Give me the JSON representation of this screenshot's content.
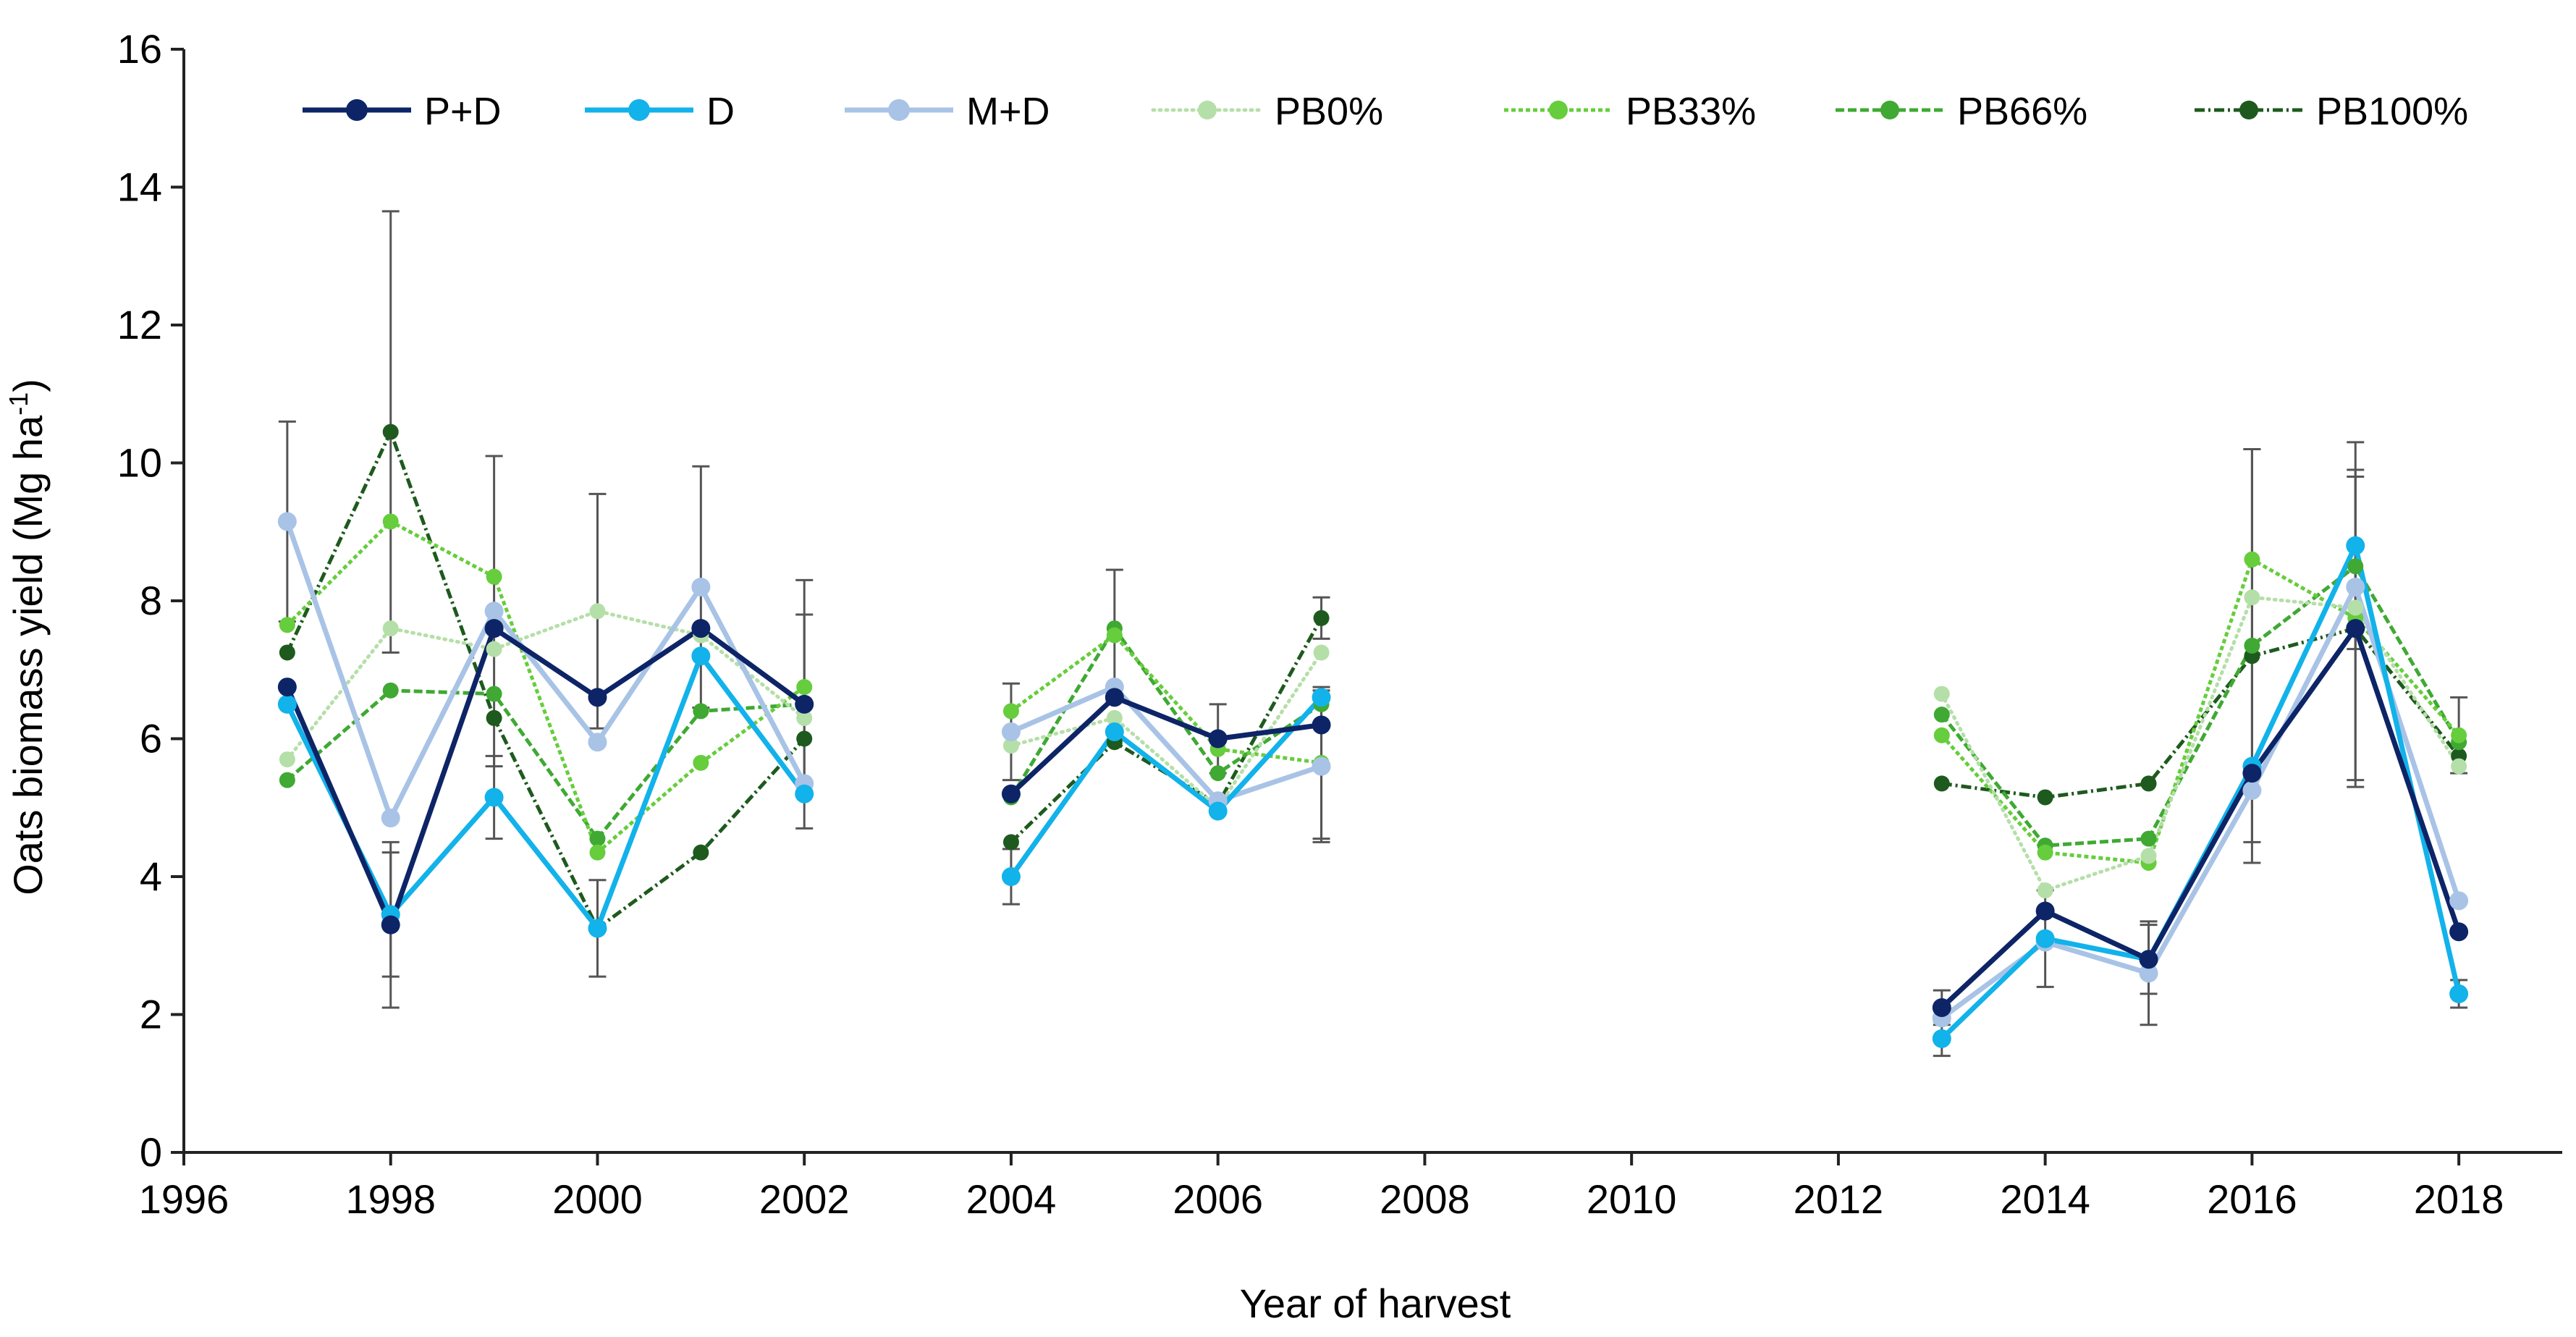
{
  "chart_data": {
    "type": "line",
    "title": "",
    "xlabel": "Year of harvest",
    "ylabel_main": "Oats  biomass yield (Mg ha",
    "ylabel_sup": "-1",
    "ylabel_close": ")",
    "xlim": [
      1996,
      2019
    ],
    "ylim": [
      0,
      16
    ],
    "xticks": [
      1996,
      1998,
      2000,
      2002,
      2004,
      2006,
      2008,
      2010,
      2012,
      2014,
      2016,
      2018
    ],
    "yticks": [
      0,
      2,
      4,
      6,
      8,
      10,
      12,
      14,
      16
    ],
    "legend_position": "top",
    "segments": [
      [
        1997,
        2002
      ],
      [
        2004,
        2007
      ],
      [
        2013,
        2018
      ]
    ],
    "series": [
      {
        "name": "P+D",
        "color": "#0d2467",
        "dash": "solid",
        "width": 7,
        "marker": 13,
        "x": [
          1997,
          1998,
          1999,
          2000,
          2001,
          2002,
          2004,
          2005,
          2006,
          2007,
          2013,
          2014,
          2015,
          2016,
          2017,
          2018
        ],
        "y": [
          6.75,
          3.3,
          7.6,
          6.6,
          7.6,
          6.5,
          5.2,
          6.6,
          6.0,
          6.2,
          2.1,
          3.5,
          2.8,
          5.5,
          7.6,
          3.2
        ],
        "err": [
          0,
          1.2,
          0,
          0,
          0,
          1.3,
          0,
          0,
          0.5,
          0,
          0.25,
          0,
          0,
          0,
          2.2,
          0
        ]
      },
      {
        "name": "D",
        "color": "#12b2ea",
        "dash": "solid",
        "width": 7,
        "marker": 13,
        "x": [
          1997,
          1998,
          1999,
          2000,
          2001,
          2002,
          2004,
          2005,
          2006,
          2007,
          2013,
          2014,
          2015,
          2016,
          2017,
          2018
        ],
        "y": [
          6.5,
          3.45,
          5.15,
          3.25,
          7.2,
          5.2,
          4.0,
          6.1,
          4.95,
          6.6,
          1.65,
          3.1,
          2.8,
          5.6,
          8.8,
          2.3
        ],
        "err": [
          0,
          0.9,
          0.6,
          0.7,
          0,
          0,
          0.4,
          0,
          0,
          0,
          0.25,
          0.7,
          0.5,
          0,
          1.5,
          0.2
        ]
      },
      {
        "name": "M+D",
        "color": "#a8c3e6",
        "dash": "solid",
        "width": 7,
        "marker": 13,
        "x": [
          1997,
          1998,
          1999,
          2000,
          2001,
          2002,
          2004,
          2005,
          2006,
          2007,
          2013,
          2014,
          2015,
          2016,
          2017,
          2018
        ],
        "y": [
          9.15,
          4.85,
          7.85,
          5.95,
          8.2,
          5.35,
          6.1,
          6.75,
          5.1,
          5.6,
          1.95,
          3.05,
          2.6,
          5.25,
          8.2,
          3.65
        ],
        "err": [
          1.45,
          0,
          2.25,
          0,
          1.75,
          0,
          0.7,
          0,
          0,
          1.1,
          0,
          0,
          0.75,
          0,
          0,
          0
        ]
      },
      {
        "name": "PB0%",
        "color": "#b5dfa8",
        "dash": "dot",
        "width": 5,
        "marker": 11,
        "x": [
          1997,
          1998,
          1999,
          2000,
          2001,
          2002,
          2004,
          2005,
          2006,
          2007,
          2013,
          2014,
          2015,
          2016,
          2017,
          2018
        ],
        "y": [
          5.7,
          7.6,
          7.3,
          7.85,
          7.5,
          6.3,
          5.9,
          6.3,
          5.0,
          7.25,
          6.65,
          3.8,
          4.3,
          8.05,
          7.9,
          5.6
        ],
        "err": [
          0,
          0,
          0,
          1.7,
          0,
          0,
          0,
          0,
          0,
          0,
          0,
          0,
          0,
          0,
          0,
          0
        ]
      },
      {
        "name": "PB33%",
        "color": "#66cd3c",
        "dash": "6,4",
        "width": 5,
        "marker": 11,
        "x": [
          1997,
          1998,
          1999,
          2000,
          2001,
          2002,
          2004,
          2005,
          2006,
          2007,
          2013,
          2014,
          2015,
          2016,
          2017,
          2018
        ],
        "y": [
          7.65,
          9.15,
          8.35,
          4.35,
          5.65,
          6.75,
          6.4,
          7.5,
          5.85,
          5.65,
          6.05,
          4.35,
          4.2,
          8.6,
          7.75,
          6.05
        ],
        "err": [
          0,
          0,
          0,
          0,
          0,
          0,
          0,
          0.95,
          0,
          1.1,
          0,
          0,
          0,
          0,
          0,
          0.55
        ]
      },
      {
        "name": "PB66%",
        "color": "#3fa933",
        "dash": "12,5",
        "width": 5,
        "marker": 11,
        "x": [
          1997,
          1998,
          1999,
          2000,
          2001,
          2002,
          2004,
          2005,
          2006,
          2007,
          2013,
          2014,
          2015,
          2016,
          2017,
          2018
        ],
        "y": [
          5.4,
          6.7,
          6.65,
          4.55,
          6.4,
          6.5,
          5.15,
          7.6,
          5.5,
          6.5,
          6.35,
          4.45,
          4.55,
          7.35,
          8.5,
          5.95
        ],
        "err": [
          0,
          0,
          0,
          0,
          0,
          1.8,
          0,
          0,
          0,
          0,
          0,
          0,
          0,
          2.85,
          0,
          0
        ]
      },
      {
        "name": "PB100%",
        "color": "#1e5a1e",
        "dash": "14,5,3,5",
        "width": 5,
        "marker": 11,
        "x": [
          1997,
          1998,
          1999,
          2000,
          2001,
          2002,
          2004,
          2005,
          2006,
          2007,
          2013,
          2014,
          2015,
          2016,
          2017,
          2018
        ],
        "y": [
          7.25,
          10.45,
          6.3,
          3.25,
          4.35,
          6.0,
          4.5,
          5.95,
          5.05,
          7.75,
          5.35,
          5.15,
          5.35,
          7.2,
          7.6,
          5.75
        ],
        "err": [
          0,
          3.2,
          0,
          0,
          0,
          0,
          0,
          0,
          0,
          0.3,
          0,
          0,
          0,
          3.0,
          2.3,
          0
        ]
      }
    ]
  }
}
